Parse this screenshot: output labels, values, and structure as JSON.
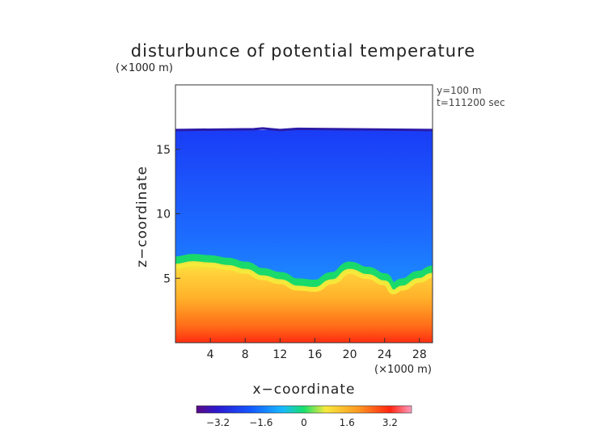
{
  "chart_data": {
    "type": "heatmap",
    "title": "disturbunce of potential temperature",
    "ylabel": "z−coordinate",
    "xlabel": "x−coordinate",
    "y_unit": "(×1000 m)",
    "x_unit": "(×1000 m)",
    "annotations": [
      "y=100 m",
      "t=111200 sec"
    ],
    "xlim": [
      0,
      29.5
    ],
    "ylim": [
      0,
      20
    ],
    "x_ticks": [
      4,
      8,
      12,
      16,
      20,
      24,
      28
    ],
    "x_tick_labels": [
      "4",
      "8",
      "12",
      "16",
      "20",
      "24",
      "28"
    ],
    "y_ticks": [
      5,
      10,
      15
    ],
    "y_tick_labels": [
      "5",
      "10",
      "15"
    ],
    "field_top_height": 16.5,
    "cold_layer_value": -1.8,
    "warm_layer_value": 2.0,
    "interface_profile": {
      "x": [
        0,
        2,
        4,
        6,
        8,
        10,
        12,
        14,
        16,
        18,
        20,
        22,
        24,
        25,
        26,
        28,
        29.5
      ],
      "z": [
        6.0,
        6.2,
        6.1,
        5.9,
        5.6,
        5.1,
        4.8,
        4.3,
        4.2,
        4.8,
        5.6,
        5.2,
        4.7,
        4.0,
        4.3,
        4.9,
        5.3
      ]
    },
    "colorbar": {
      "min": -4,
      "max": 4,
      "ticks": [
        -3.2,
        -1.6,
        0,
        1.6,
        3.2
      ],
      "tick_labels": [
        "−3.2",
        "−1.6",
        "0",
        "1.6",
        "3.2"
      ]
    },
    "grid": false
  }
}
